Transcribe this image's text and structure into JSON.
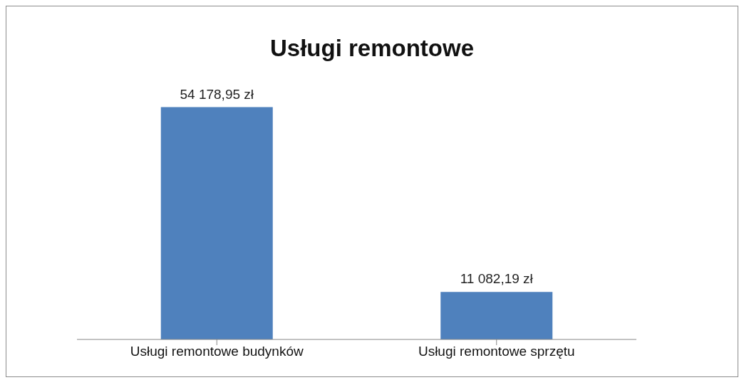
{
  "chart_data": {
    "type": "bar",
    "title": "Usługi remontowe",
    "categories": [
      "Usługi remontowe budynków",
      "Usługi remontowe sprzętu"
    ],
    "values": [
      54178.95,
      11082.19
    ],
    "value_labels": [
      "54 178,95 zł",
      "11 082,19 zł"
    ],
    "color": "#4f81bd",
    "grid": false,
    "legend": false
  }
}
